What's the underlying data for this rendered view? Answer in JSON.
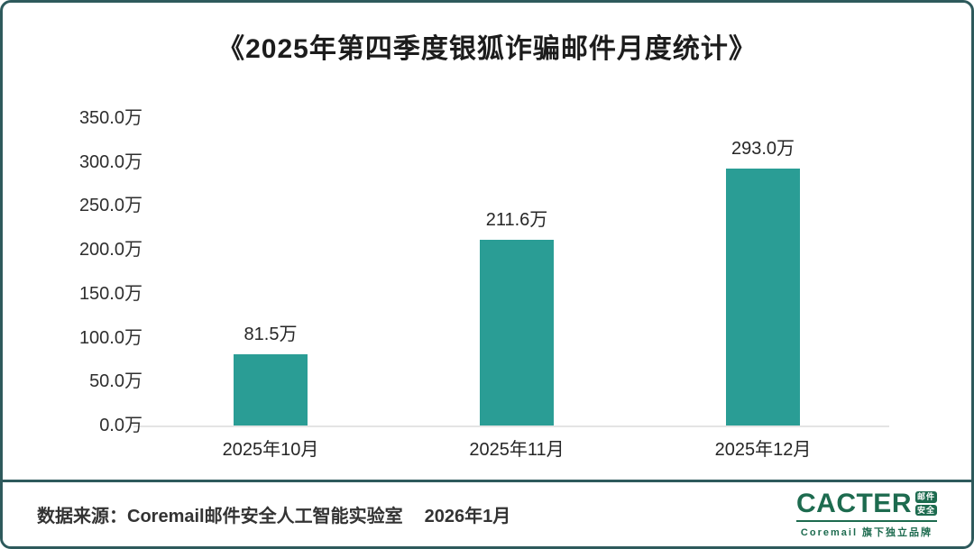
{
  "title": "《2025年第四季度银狐诈骗邮件月度统计》",
  "chart_data": {
    "type": "bar",
    "title": "《2025年第四季度银狐诈骗邮件月度统计》",
    "categories": [
      "2025年10月",
      "2025年11月",
      "2025年12月"
    ],
    "values": [
      81.5,
      211.6,
      293.0
    ],
    "value_labels": [
      "81.5万",
      "211.6万",
      "293.0万"
    ],
    "unit": "万",
    "xlabel": "",
    "ylabel": "",
    "ylim": [
      0,
      350
    ],
    "ytick_step": 50,
    "ytick_labels": [
      "0.0万",
      "50.0万",
      "100.0万",
      "150.0万",
      "200.0万",
      "250.0万",
      "300.0万",
      "350.0万"
    ],
    "grid": false,
    "legend": "none",
    "bar_color": "#2a9d95"
  },
  "footer": {
    "source_text": "数据来源：Coremail邮件安全人工智能实验室",
    "date_text": "2026年1月",
    "logo": {
      "brand": "CACTER",
      "badge_line1": "邮件",
      "badge_line2": "安全",
      "tagline": "Coremail 旗下独立品牌"
    }
  },
  "colors": {
    "bar": "#2a9d95",
    "frame_border": "#2e5a5c",
    "axis_line": "#e4e4e4",
    "logo_green": "#1d6b4f",
    "text": "#262626"
  }
}
